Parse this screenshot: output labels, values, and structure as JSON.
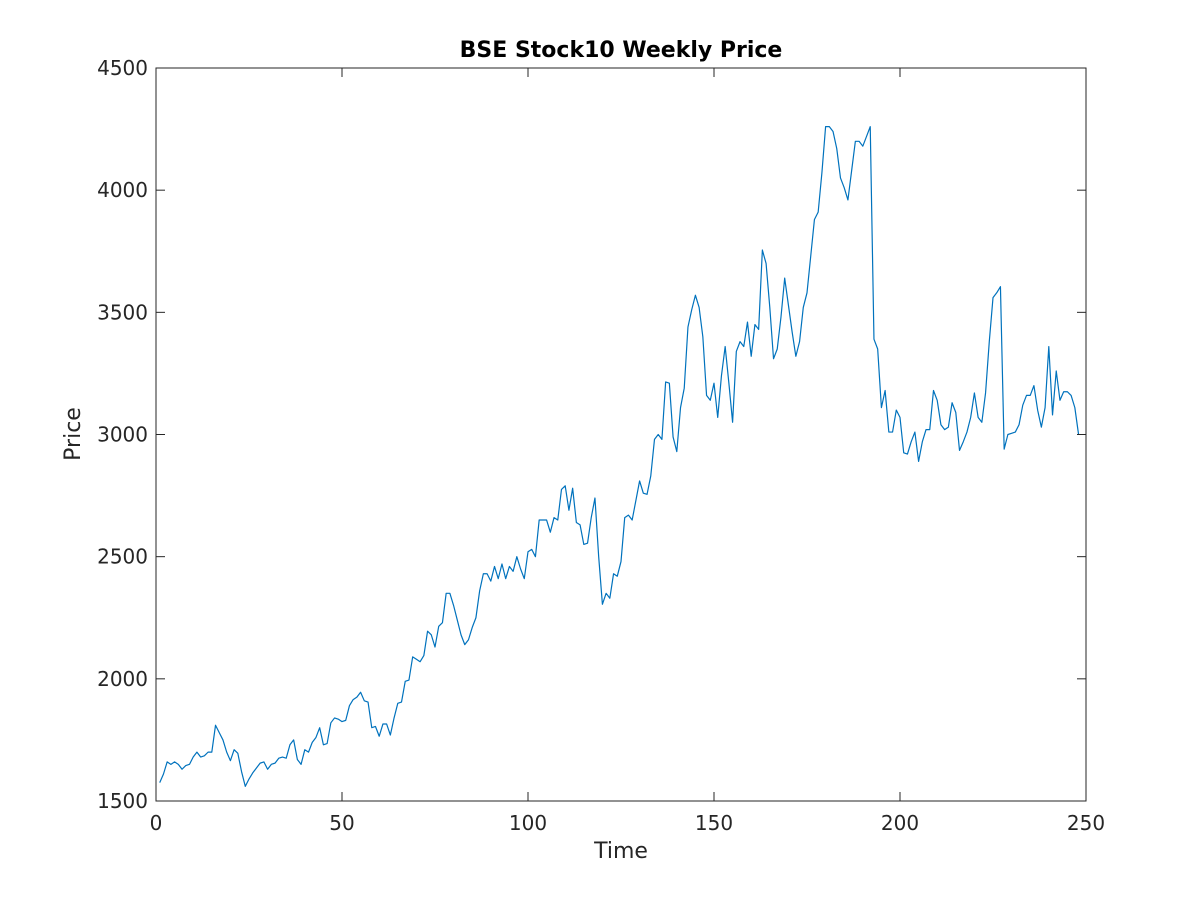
{
  "chart_data": {
    "type": "line",
    "title": "BSE Stock10 Weekly Price",
    "xlabel": "Time",
    "ylabel": "Price",
    "xlim": [
      0,
      250
    ],
    "ylim": [
      1500,
      4500
    ],
    "xticks": [
      "0",
      "50",
      "100",
      "150",
      "200",
      "250"
    ],
    "yticks": [
      "1500",
      "2000",
      "2500",
      "3000",
      "3500",
      "4000",
      "4500"
    ],
    "grid": false,
    "line_color": "#0072BD",
    "series": [
      {
        "x": [
          1,
          2,
          3,
          4,
          5,
          6,
          7,
          8,
          9,
          10,
          11,
          12,
          13,
          14,
          15,
          16,
          17,
          18,
          19,
          20,
          21,
          22,
          23,
          24,
          25,
          26,
          27,
          28,
          29,
          30,
          31,
          32,
          33,
          34,
          35,
          36,
          37,
          38,
          39,
          40,
          41,
          42,
          43,
          44,
          45,
          46,
          47,
          48,
          49,
          50,
          51,
          52,
          53,
          54,
          55,
          56,
          57,
          58,
          59,
          60,
          61,
          62,
          63,
          64,
          65,
          66,
          67,
          68,
          69,
          70,
          71,
          72,
          73,
          74,
          75,
          76,
          77,
          78,
          79,
          80,
          81,
          82,
          83,
          84,
          85,
          86,
          87,
          88,
          89,
          90,
          91,
          92,
          93,
          94,
          95,
          96,
          97,
          98,
          99,
          100,
          101,
          102,
          103,
          104,
          105,
          106,
          107,
          108,
          109,
          110,
          111,
          112,
          113,
          114,
          115,
          116,
          117,
          118,
          119,
          120,
          121,
          122,
          123,
          124,
          125,
          126,
          127,
          128,
          129,
          130,
          131,
          132,
          133,
          134,
          135,
          136,
          137,
          138,
          139,
          140,
          141,
          142,
          143,
          144,
          145,
          146,
          147,
          148,
          149,
          150,
          151,
          152,
          153,
          154,
          155,
          156,
          157,
          158,
          159,
          160,
          161,
          162,
          163,
          164,
          165,
          166,
          167,
          168,
          169,
          170,
          171,
          172,
          173,
          174,
          175,
          176,
          177,
          178,
          179,
          180,
          181,
          182,
          183,
          184,
          185,
          186,
          187,
          188,
          189,
          190,
          191,
          192,
          193,
          194,
          195,
          196,
          197,
          198,
          199,
          200,
          201,
          202,
          203,
          204,
          205,
          206,
          207,
          208,
          209,
          210,
          211,
          212,
          213,
          214,
          215,
          216,
          217,
          218,
          219,
          220,
          221,
          222,
          223,
          224,
          225,
          226,
          227,
          228,
          229,
          230,
          231,
          232,
          233,
          234,
          235,
          236,
          237,
          238,
          239,
          240,
          241,
          242,
          243,
          244,
          245,
          246,
          247,
          248
        ],
        "values": [
          1575,
          1610,
          1660,
          1650,
          1660,
          1650,
          1630,
          1645,
          1650,
          1680,
          1700,
          1680,
          1685,
          1700,
          1700,
          1810,
          1780,
          1750,
          1700,
          1665,
          1710,
          1695,
          1620,
          1560,
          1590,
          1615,
          1635,
          1655,
          1660,
          1630,
          1650,
          1655,
          1675,
          1680,
          1675,
          1730,
          1750,
          1670,
          1650,
          1710,
          1700,
          1740,
          1760,
          1800,
          1730,
          1735,
          1820,
          1840,
          1835,
          1825,
          1830,
          1890,
          1915,
          1925,
          1945,
          1910,
          1905,
          1800,
          1805,
          1765,
          1815,
          1815,
          1770,
          1840,
          1900,
          1905,
          1990,
          1995,
          2090,
          2080,
          2070,
          2095,
          2195,
          2180,
          2130,
          2215,
          2230,
          2350,
          2350,
          2300,
          2240,
          2180,
          2140,
          2160,
          2210,
          2250,
          2360,
          2430,
          2430,
          2400,
          2460,
          2410,
          2470,
          2410,
          2460,
          2440,
          2500,
          2450,
          2410,
          2520,
          2530,
          2500,
          2650,
          2650,
          2650,
          2600,
          2660,
          2650,
          2775,
          2790,
          2690,
          2780,
          2640,
          2630,
          2550,
          2555,
          2660,
          2740,
          2500,
          2305,
          2350,
          2330,
          2430,
          2420,
          2480,
          2660,
          2670,
          2650,
          2730,
          2810,
          2760,
          2755,
          2830,
          2980,
          3000,
          2980,
          3215,
          3210,
          2990,
          2930,
          3110,
          3190,
          3440,
          3510,
          3570,
          3520,
          3400,
          3160,
          3140,
          3210,
          3070,
          3240,
          3360,
          3210,
          3050,
          3340,
          3380,
          3360,
          3460,
          3320,
          3450,
          3430,
          3755,
          3700,
          3520,
          3310,
          3350,
          3480,
          3640,
          3530,
          3420,
          3320,
          3380,
          3520,
          3580,
          3730,
          3880,
          3910,
          4070,
          4260,
          4260,
          4240,
          4170,
          4050,
          4010,
          3960,
          4080,
          4200,
          4200,
          4180,
          4220,
          4260,
          3390,
          3350,
          3110,
          3180,
          3010,
          3010,
          3100,
          3070,
          2925,
          2920,
          2970,
          3010,
          2890,
          2970,
          3020,
          3020,
          3180,
          3140,
          3040,
          3020,
          3030,
          3130,
          3090,
          2935,
          2970,
          3010,
          3070,
          3170,
          3070,
          3050,
          3170,
          3380,
          3560,
          3580,
          3605,
          2940,
          3000,
          3005,
          3010,
          3040,
          3120,
          3160,
          3160,
          3200,
          3100,
          3030,
          3110,
          3360,
          3080,
          3260,
          3140,
          3175,
          3175,
          3160,
          3110,
          3000
        ]
      }
    ]
  }
}
